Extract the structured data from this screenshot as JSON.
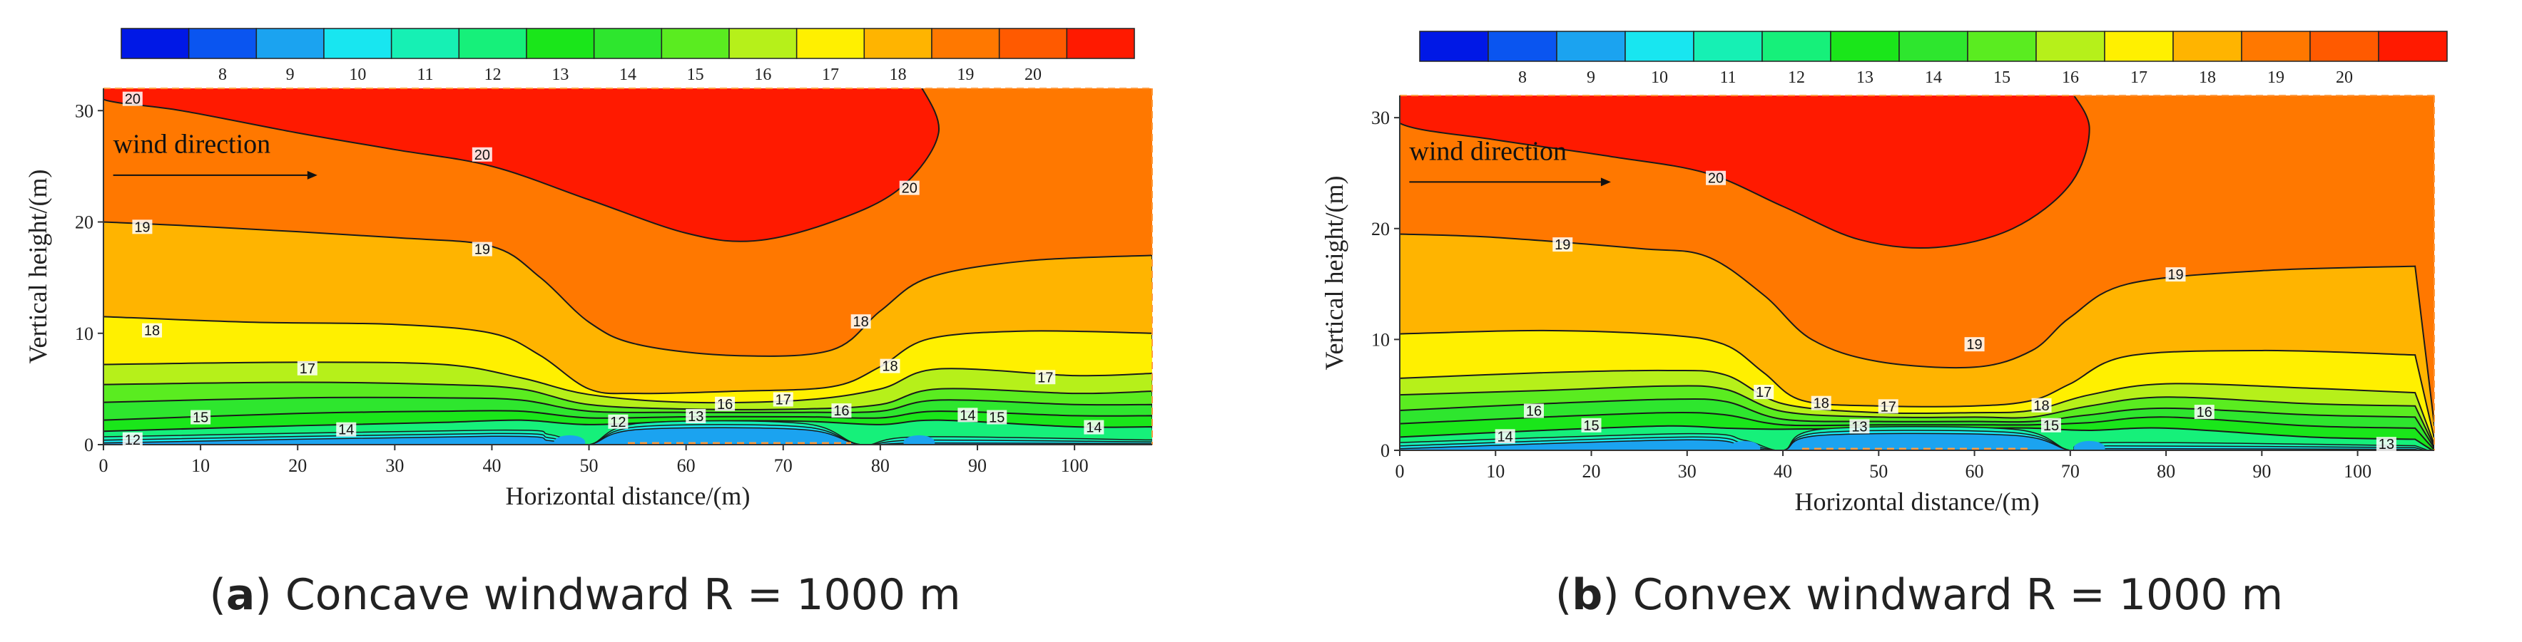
{
  "colors": {
    "levels": [
      "#0018e6",
      "#0a55f0",
      "#1ba3f0",
      "#18e6f0",
      "#16f0b4",
      "#16f07a",
      "#1ae61a",
      "#2ee62e",
      "#5aec20",
      "#b6f01a",
      "#fff000",
      "#ffb400",
      "#ff7800",
      "#ff5a00",
      "#ff1a00"
    ],
    "contour": "#1a1a1a",
    "ground": "#ff9c40"
  },
  "chart_data": [
    {
      "type": "contour",
      "panel_label": "a",
      "title": "Concave windward R = 1000 m",
      "xlabel": "Horizontal distance/(m)",
      "ylabel": "Vertical height/(m)",
      "xlim": [
        0,
        108
      ],
      "ylim": [
        0,
        32
      ],
      "xticks": [
        "0",
        "10",
        "20",
        "30",
        "40",
        "50",
        "60",
        "70",
        "80",
        "90",
        "100"
      ],
      "yticks": [
        "0",
        "10",
        "20",
        "30"
      ],
      "colorbar_ticks": [
        "8",
        "9",
        "10",
        "11",
        "12",
        "13",
        "14",
        "15",
        "16",
        "17",
        "18",
        "19",
        "20"
      ],
      "annotation": "wind direction",
      "contour_labels": [
        "20",
        "20",
        "20",
        "19",
        "19",
        "18",
        "18",
        "18",
        "17",
        "17",
        "17",
        "16",
        "16",
        "15",
        "15",
        "14",
        "14",
        "14",
        "13",
        "12",
        "12"
      ]
    },
    {
      "type": "contour",
      "panel_label": "b",
      "title": "Convex windward R = 1000 m",
      "xlabel": "Horizontal distance/(m)",
      "ylabel": "Vertical height/(m)",
      "xlim": [
        0,
        108
      ],
      "ylim": [
        0,
        32
      ],
      "xticks": [
        "0",
        "10",
        "20",
        "30",
        "40",
        "50",
        "60",
        "70",
        "80",
        "90",
        "100"
      ],
      "yticks": [
        "0",
        "10",
        "20",
        "30"
      ],
      "colorbar_ticks": [
        "8",
        "9",
        "10",
        "11",
        "12",
        "13",
        "14",
        "15",
        "16",
        "17",
        "18",
        "19",
        "20"
      ],
      "annotation": "wind direction",
      "contour_labels": [
        "20",
        "19",
        "19",
        "19",
        "18",
        "18",
        "17",
        "17",
        "16",
        "16",
        "15",
        "15",
        "14",
        "13",
        "13"
      ]
    }
  ]
}
